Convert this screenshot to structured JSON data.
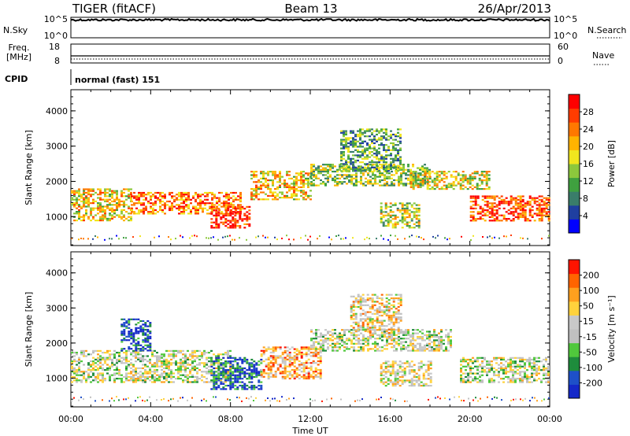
{
  "header": {
    "radar": "TIGER (fitACF)",
    "beam": "Beam 13",
    "date": "26/Apr/2013"
  },
  "strips": {
    "nsky_label": "N.Sky",
    "nsky_ticks": [
      "10^5",
      "10^0"
    ],
    "nsearch_label": "N.Search",
    "nsearch_ticks": [
      "10^5",
      "10^0"
    ],
    "freq_label_line1": "Freq.",
    "freq_label_line2": "[MHz]",
    "freq_ticks": [
      "18",
      "8"
    ],
    "nave_label": "Nave",
    "nave_ticks": [
      "60",
      "0"
    ],
    "cpid_label": "CPID",
    "cpid_value": "normal (fast) 151"
  },
  "xaxis": {
    "label": "Time UT",
    "ticks": [
      "00:00",
      "04:00",
      "08:00",
      "12:00",
      "16:00",
      "20:00",
      "00:00"
    ],
    "range_hours": [
      0,
      24
    ]
  },
  "colors": {
    "power_scale": [
      "#0000ff",
      "#1f3fa0",
      "#3a7d6a",
      "#3fa03f",
      "#8cc83c",
      "#f0e61e",
      "#ffb400",
      "#ff7800",
      "#ff3c00",
      "#ff0000"
    ],
    "velocity_scale": [
      "#1428c8",
      "#1e50c8",
      "#1e8c3c",
      "#50c83c",
      "#c0c0c0",
      "#c8c8c8",
      "#ffd23c",
      "#ffa01e",
      "#ff6400",
      "#ff1400"
    ]
  },
  "chart_data": [
    {
      "type": "heatmap",
      "panel": "power",
      "ylabel": "Slant Range [km]",
      "xlim": [
        0,
        24
      ],
      "ylim": [
        180,
        4600
      ],
      "yticks": [
        "1000",
        "2000",
        "3000",
        "4000"
      ],
      "colorbar_label": "Power [dB]",
      "colorbar_ticks": [
        "28",
        "24",
        "20",
        "16",
        "12",
        "8",
        "4"
      ],
      "colorbar_range": [
        0,
        32
      ],
      "bands": [
        {
          "t0": 0.0,
          "t1": 3.0,
          "r0": 900,
          "r1": 1800,
          "level": 0.6
        },
        {
          "t0": 3.0,
          "t1": 8.5,
          "r0": 1100,
          "r1": 1700,
          "level": 0.75
        },
        {
          "t0": 7.0,
          "t1": 9.0,
          "r0": 700,
          "r1": 1300,
          "level": 0.9
        },
        {
          "t0": 9.0,
          "t1": 12.0,
          "r0": 1500,
          "r1": 2300,
          "level": 0.6
        },
        {
          "t0": 12.0,
          "t1": 18.0,
          "r0": 1900,
          "r1": 2500,
          "level": 0.45
        },
        {
          "t0": 13.5,
          "t1": 16.5,
          "r0": 2300,
          "r1": 3500,
          "level": 0.35
        },
        {
          "t0": 15.5,
          "t1": 17.5,
          "r0": 700,
          "r1": 1400,
          "level": 0.5
        },
        {
          "t0": 17.0,
          "t1": 21.0,
          "r0": 1800,
          "r1": 2300,
          "level": 0.55
        },
        {
          "t0": 20.0,
          "t1": 24.0,
          "r0": 900,
          "r1": 1600,
          "level": 0.85
        }
      ]
    },
    {
      "type": "heatmap",
      "panel": "velocity",
      "ylabel": "Slant Range [km]",
      "xlim": [
        0,
        24
      ],
      "ylim": [
        180,
        4600
      ],
      "yticks": [
        "1000",
        "2000",
        "3000",
        "4000"
      ],
      "colorbar_label": "Velocity [m s⁻¹]",
      "colorbar_ticks": [
        "200",
        "100",
        "50",
        "15",
        "-15",
        "-50",
        "-100",
        "-200"
      ],
      "colorbar_range": [
        -250,
        250
      ],
      "bands": [
        {
          "t0": 0.0,
          "t1": 8.0,
          "r0": 900,
          "r1": 1800,
          "level": 0.5
        },
        {
          "t0": 2.5,
          "t1": 4.0,
          "r0": 1800,
          "r1": 2700,
          "level": 0.1
        },
        {
          "t0": 7.0,
          "t1": 9.5,
          "r0": 700,
          "r1": 1600,
          "level": 0.15
        },
        {
          "t0": 9.5,
          "t1": 12.5,
          "r0": 1000,
          "r1": 1900,
          "level": 0.7
        },
        {
          "t0": 12.0,
          "t1": 19.0,
          "r0": 1800,
          "r1": 2400,
          "level": 0.5
        },
        {
          "t0": 14.0,
          "t1": 16.5,
          "r0": 2300,
          "r1": 3400,
          "level": 0.6
        },
        {
          "t0": 15.5,
          "t1": 18.0,
          "r0": 800,
          "r1": 1500,
          "level": 0.55
        },
        {
          "t0": 19.5,
          "t1": 24.0,
          "r0": 900,
          "r1": 1600,
          "level": 0.5
        }
      ]
    }
  ]
}
